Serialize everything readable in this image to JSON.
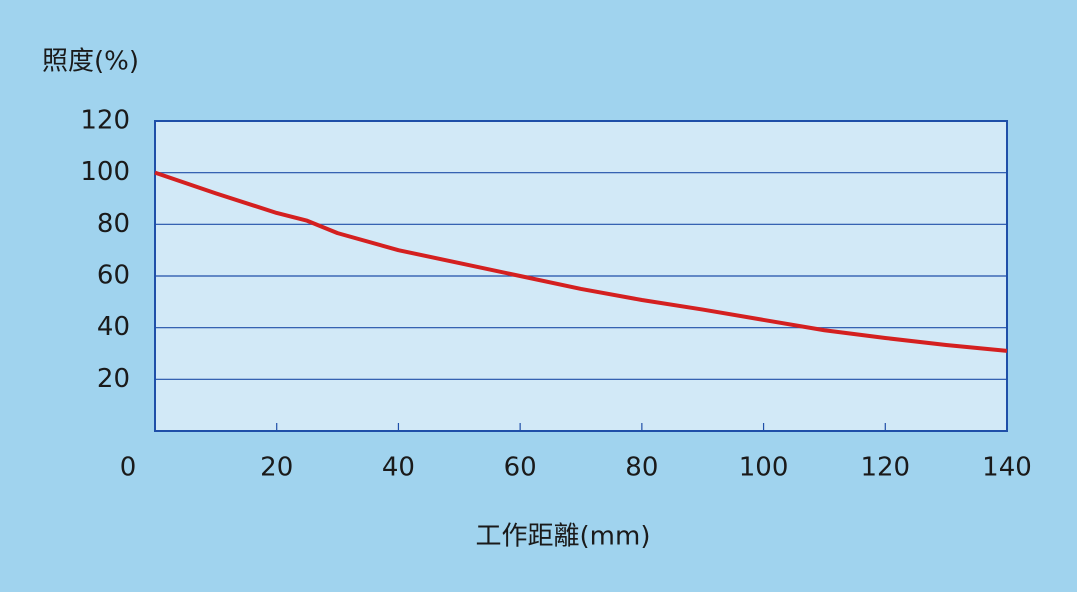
{
  "chart_data": {
    "type": "line",
    "y_label": "照度(%)",
    "x_label": "工作距離(mm)",
    "x": [
      0,
      10,
      20,
      25,
      30,
      40,
      50,
      60,
      70,
      80,
      90,
      100,
      110,
      120,
      130,
      140
    ],
    "series": [
      {
        "name": "照度",
        "color": "#d42020",
        "values": [
          100,
          92,
          84.4,
          81.4,
          76.6,
          70,
          65,
          60,
          55,
          50.7,
          47,
          43,
          39,
          36,
          33.3,
          31
        ]
      }
    ],
    "xlim": [
      0,
      140
    ],
    "xticks": [
      0,
      20,
      40,
      60,
      80,
      100,
      120,
      140
    ],
    "ylim": [
      0,
      120
    ],
    "yticks": [
      20,
      40,
      60,
      80,
      100,
      120
    ],
    "grid": true
  }
}
